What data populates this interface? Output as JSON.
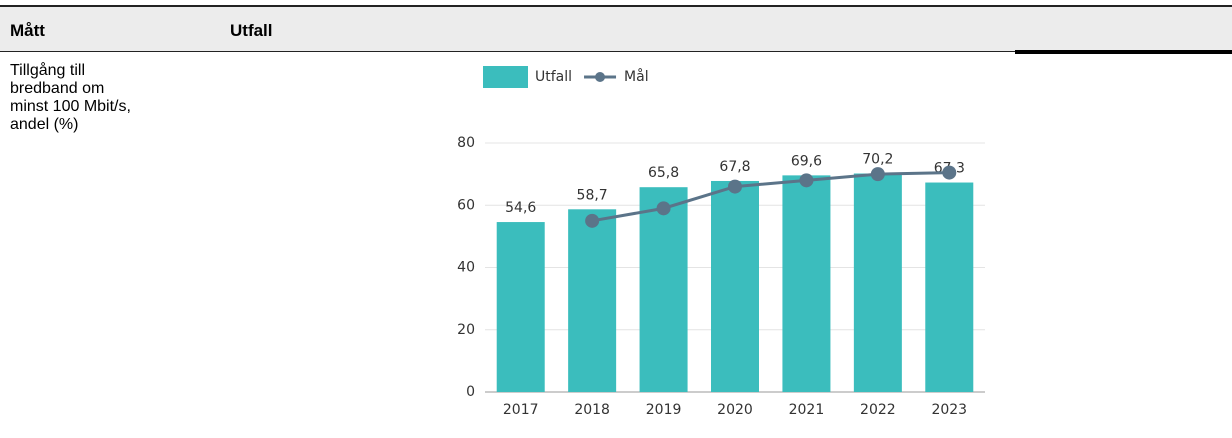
{
  "table": {
    "header": [
      "Mått",
      "Utfall"
    ],
    "rows": [
      [
        "Tillgång till bredband om minst 100 Mbit/s, andel (%)"
      ]
    ]
  },
  "chart_data": {
    "type": "bar",
    "categories": [
      "2017",
      "2018",
      "2019",
      "2020",
      "2021",
      "2022",
      "2023"
    ],
    "series": [
      {
        "name": "Utfall",
        "type": "bar",
        "color": "#3bbdbd",
        "values": [
          54.6,
          58.7,
          65.8,
          67.8,
          69.6,
          70.2,
          67.3
        ],
        "value_labels": [
          "54,6",
          "58,7",
          "65,8",
          "67,8",
          "69,6",
          "70,2",
          "67,3"
        ]
      },
      {
        "name": "Mål",
        "type": "line",
        "color": "#5b7489",
        "values": [
          null,
          55,
          59,
          66,
          68,
          70,
          70.5
        ]
      }
    ],
    "ylim": [
      0,
      80
    ],
    "yticks": [
      0,
      20,
      40,
      60,
      80
    ],
    "grid": true
  }
}
